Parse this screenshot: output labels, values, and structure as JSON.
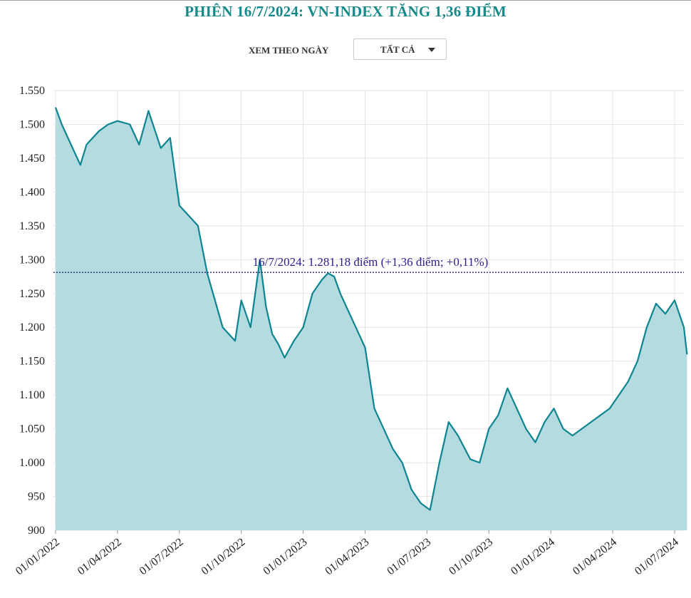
{
  "title": "PHIÊN 16/7/2024: VN-INDEX TĂNG 1,36 ĐIỂM",
  "filter": {
    "label": "XEM THEO NGÀY",
    "selected": "TẤT CẢ"
  },
  "colors": {
    "title": "#148a8a",
    "line": "#0d8590",
    "area": "#b3dbe0",
    "refline": "#1a237e",
    "annotation": "#2a1f8f",
    "grid": "#e4e4e4"
  },
  "chart_data": {
    "type": "area",
    "title": "PHIÊN 16/7/2024: VN-INDEX TĂNG 1,36 ĐIỂM",
    "xlabel": "",
    "ylabel": "",
    "ylim": [
      900,
      1550
    ],
    "yticks": [
      900,
      950,
      1000,
      1050,
      1100,
      1150,
      1200,
      1250,
      1300,
      1350,
      1400,
      1450,
      1500,
      1550
    ],
    "ytick_labels": [
      "900",
      "950",
      "1.000",
      "1.050",
      "1.100",
      "1.150",
      "1.200",
      "1.250",
      "1.300",
      "1.350",
      "1.400",
      "1.450",
      "1.500",
      "1.550"
    ],
    "xtick_labels": [
      "01/01/2022",
      "01/04/2022",
      "01/07/2022",
      "01/10/2022",
      "01/01/2023",
      "01/04/2023",
      "01/07/2023",
      "01/10/2023",
      "01/01/2024",
      "01/04/2024",
      "01/07/2024"
    ],
    "grid": true,
    "reference_line": {
      "value": 1281.18,
      "label": "16/7/2024: 1.281,18 điểm (+1,36 điểm; +0,11%)"
    },
    "series": [
      {
        "name": "VN-Index",
        "x": [
          0,
          0.1,
          0.25,
          0.4,
          0.5,
          0.7,
          0.85,
          1,
          1.2,
          1.35,
          1.5,
          1.7,
          1.85,
          2,
          2.3,
          2.45,
          2.7,
          2.9,
          3,
          3.15,
          3.3,
          3.4,
          3.5,
          3.6,
          3.7,
          3.85,
          4,
          4.15,
          4.3,
          4.4,
          4.5,
          4.6,
          4.7,
          4.85,
          5,
          5.15,
          5.3,
          5.45,
          5.6,
          5.75,
          5.9,
          6.05,
          6.2,
          6.35,
          6.5,
          6.7,
          6.85,
          7,
          7.15,
          7.3,
          7.45,
          7.6,
          7.75,
          7.9,
          8.05,
          8.2,
          8.35,
          8.5,
          8.65,
          8.8,
          8.95,
          9.1,
          9.25,
          9.4,
          9.55,
          9.7,
          9.85,
          10,
          10.15,
          10.2
        ],
        "values": [
          1525,
          1500,
          1470,
          1440,
          1470,
          1490,
          1500,
          1505,
          1500,
          1470,
          1520,
          1465,
          1480,
          1380,
          1350,
          1280,
          1200,
          1180,
          1240,
          1200,
          1300,
          1230,
          1190,
          1175,
          1155,
          1180,
          1200,
          1250,
          1270,
          1280,
          1275,
          1250,
          1230,
          1200,
          1170,
          1080,
          1050,
          1020,
          1000,
          960,
          940,
          930,
          1000,
          1060,
          1040,
          1005,
          1000,
          1050,
          1070,
          1110,
          1080,
          1050,
          1030,
          1060,
          1080,
          1050,
          1040,
          1050,
          1060,
          1070,
          1080,
          1100,
          1120,
          1150,
          1200,
          1235,
          1220,
          1240,
          1200,
          1160
        ]
      }
    ]
  }
}
